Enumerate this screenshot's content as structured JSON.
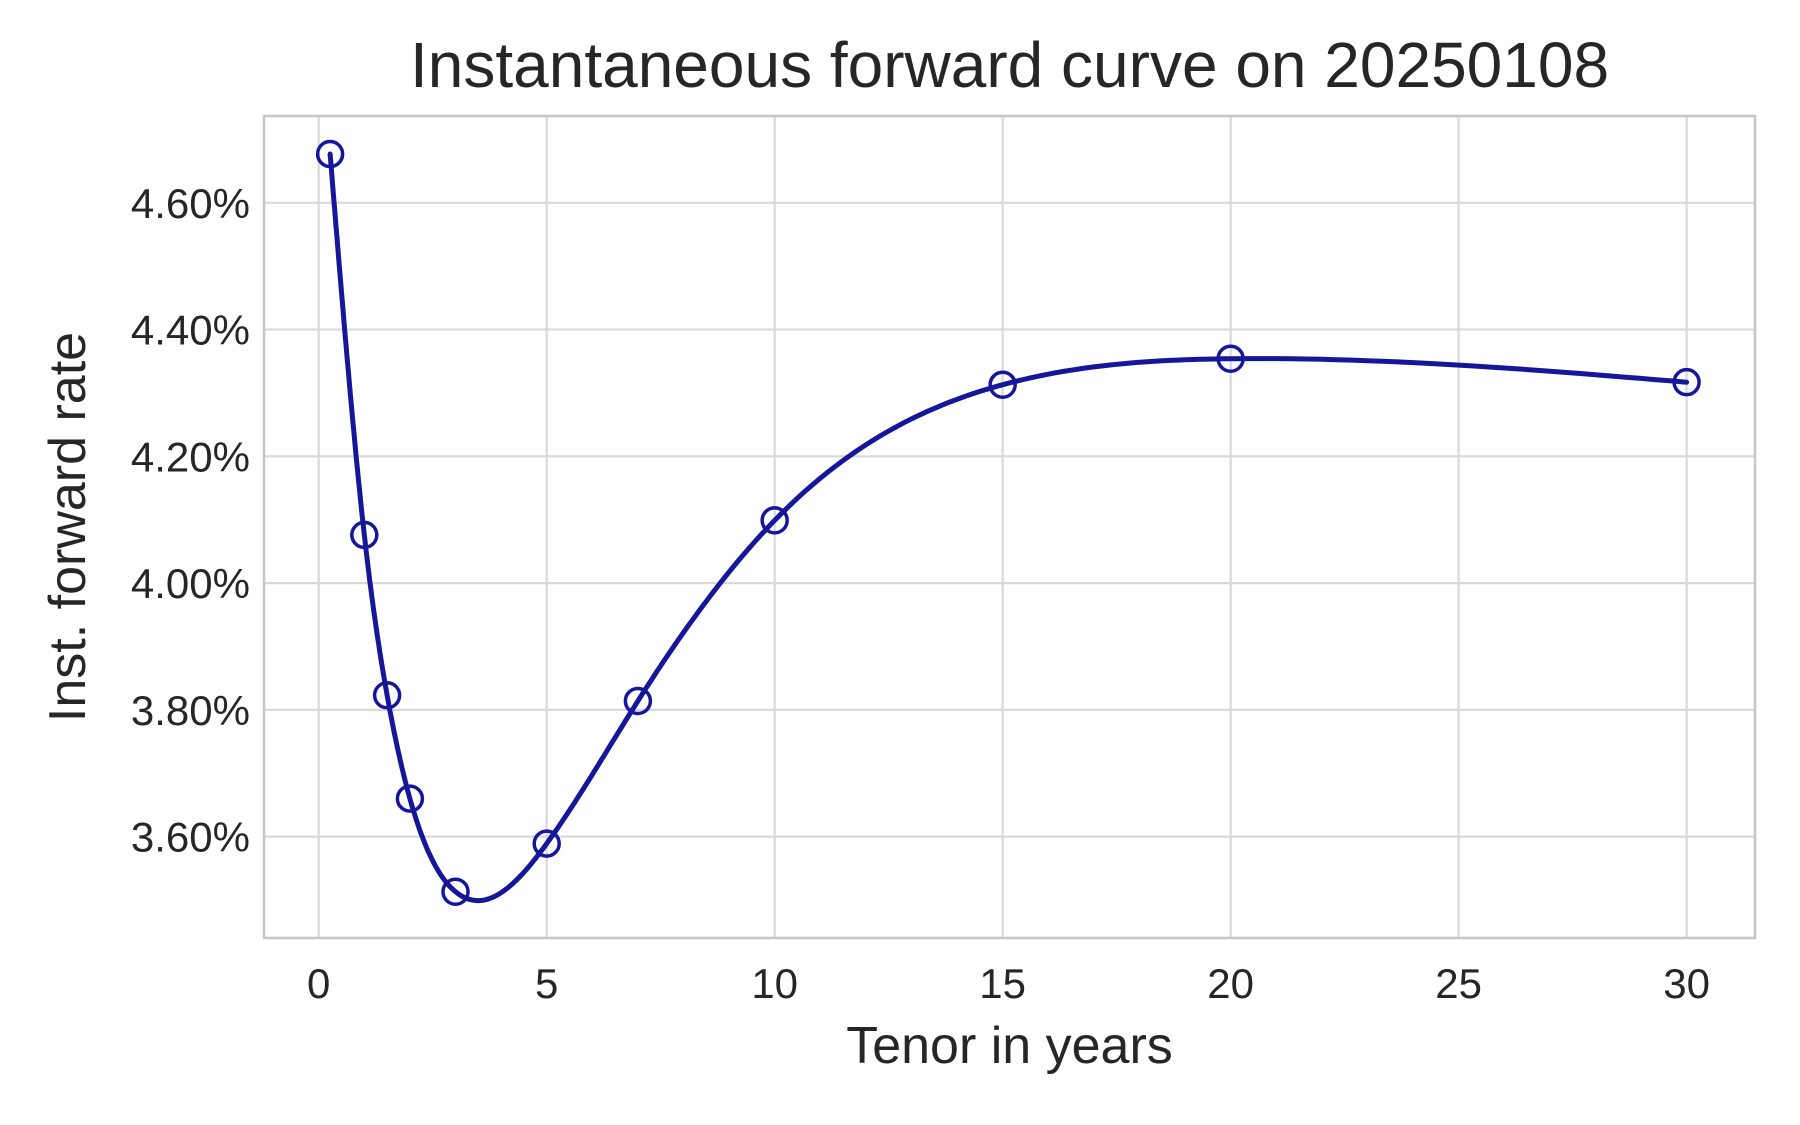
{
  "style": {
    "line_color": "#16169b",
    "grid_color": "#d9d9d9",
    "spine_color": "#c6c6c6",
    "text_color": "#262626",
    "background": "#ffffff",
    "marker": "open-circle"
  },
  "chart_data": {
    "type": "line",
    "title": "Instantaneous forward curve on 20250108",
    "xlabel": "Tenor in years",
    "ylabel": "Inst. forward rate",
    "x_tenor_years": [
      0.25,
      1,
      1.5,
      2,
      3,
      5,
      7,
      10,
      15,
      20,
      30
    ],
    "y_forward_rate_percent": [
      4.677,
      4.076,
      3.823,
      3.66,
      3.513,
      3.589,
      3.814,
      4.099,
      4.313,
      4.354,
      4.317
    ],
    "x_ticks": [
      0,
      5,
      10,
      15,
      20,
      25,
      30
    ],
    "y_ticks_percent": [
      3.6,
      3.8,
      4.0,
      4.2,
      4.4,
      4.6
    ],
    "y_tick_format": "percent-2dp",
    "xlim": [
      -1.2,
      31.5
    ],
    "ylim_percent": [
      3.44,
      4.737
    ],
    "grid": true,
    "legend": "none",
    "marker": "open-circle",
    "interpolation": "cubic-spline"
  }
}
